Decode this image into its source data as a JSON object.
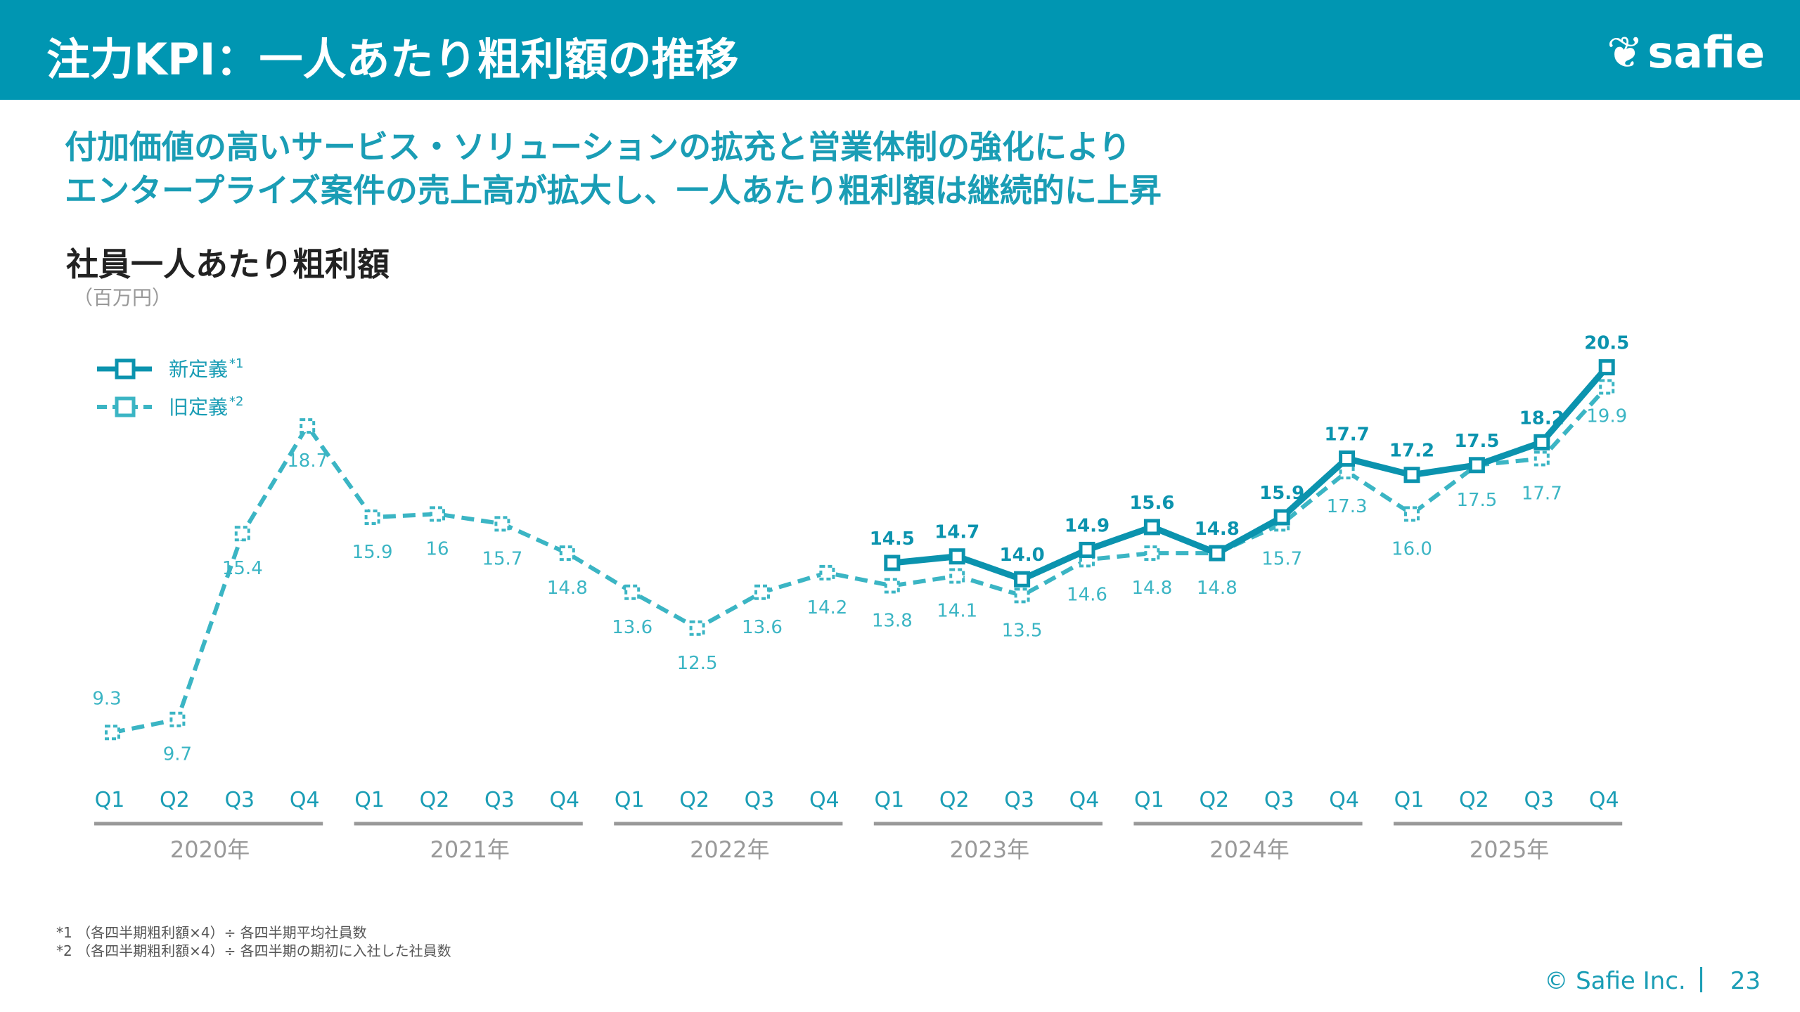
{
  "header": {
    "title": "注力KPI：一人あたり粗利額の推移",
    "logo_text": "safie"
  },
  "headline": [
    "付加価値の高いサービス・ソリューションの拡充と営業体制の強化により",
    "エンタープライズ案件の売上高が拡大し、一人あたり粗利額は継続的に上昇"
  ],
  "colors": {
    "header": "#0096b2",
    "new_series": "#0b93ae",
    "old_series": "#3bb5c4",
    "headline": "#1a9db5"
  },
  "chart_data": {
    "type": "line",
    "title": "社員一人あたり粗利額",
    "unit": "（百万円）",
    "quarters": [
      "Q1",
      "Q2",
      "Q3",
      "Q4"
    ],
    "years": [
      "2020年",
      "2021年",
      "2022年",
      "2023年",
      "2024年",
      "2025年"
    ],
    "series": [
      {
        "name": "新定義",
        "note": "*1",
        "style": "solid",
        "start_index": 12,
        "values": [
          14.5,
          14.7,
          14.0,
          14.9,
          15.6,
          14.8,
          15.9,
          17.7,
          17.2,
          17.5,
          18.2,
          20.5
        ],
        "labels": [
          "14.5",
          "14.7",
          "14.0",
          "14.9",
          "15.6",
          "14.8",
          "15.9",
          "17.7",
          "17.2",
          "17.5",
          "18.2",
          "20.5"
        ]
      },
      {
        "name": "旧定義",
        "note": "*2",
        "style": "dashed",
        "start_index": 0,
        "values": [
          9.3,
          9.7,
          15.4,
          18.7,
          15.9,
          16,
          15.7,
          14.8,
          13.6,
          12.5,
          13.6,
          14.2,
          13.8,
          14.1,
          13.5,
          14.6,
          14.8,
          14.8,
          15.7,
          17.3,
          16.0,
          17.5,
          17.7,
          19.9
        ],
        "labels": [
          "9.3",
          "9.7",
          "15.4",
          "18.7",
          "15.9",
          "16",
          "15.7",
          "14.8",
          "13.6",
          "12.5",
          "13.6",
          "14.2",
          "13.8",
          "14.1",
          "13.5",
          "14.6",
          "14.8",
          "14.8",
          "15.7",
          "17.3",
          "16.0",
          "17.5",
          "17.7",
          "19.9"
        ]
      }
    ],
    "legend": "top-left",
    "grid": false
  },
  "notes": [
    "*1 （各四半期粗利額×4）÷ 各四半期平均社員数",
    "*2 （各四半期粗利額×4）÷ 各四半期の期初に入社した社員数"
  ],
  "footer": {
    "copyright": "© Safie Inc.",
    "page": "23"
  }
}
